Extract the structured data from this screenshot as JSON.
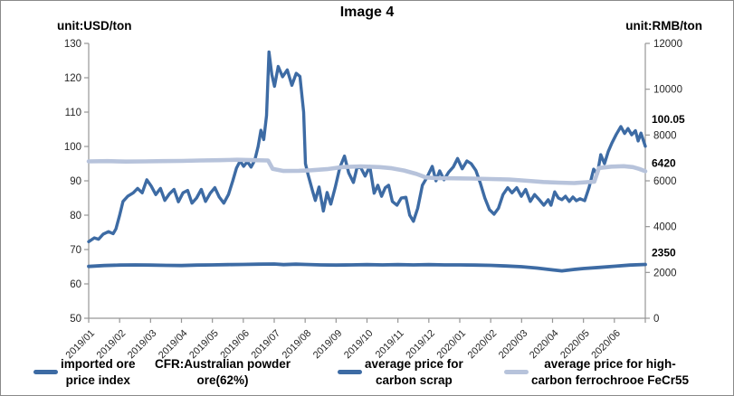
{
  "window": {
    "title": "Image 4"
  },
  "axis_units": {
    "left": "unit:USD/ton",
    "right": "unit:RMB/ton"
  },
  "colors": {
    "dark_blue": "#3d6ba4",
    "light_blue": "#b7c3db",
    "axis_gray": "#969696",
    "tick_text": "#262626",
    "label_black": "#000000"
  },
  "legend": {
    "items": [
      {
        "swatch": "dark",
        "line1": "imported ore",
        "line2": "price index"
      },
      {
        "swatch": "none",
        "line1": "CFR:Australian powder",
        "line2": "ore(62%)"
      },
      {
        "swatch": "dark",
        "line1": "average price for",
        "line2": "carbon scrap"
      },
      {
        "swatch": "light",
        "line1": "average price for high-",
        "line2": "carbon ferrochrooe FeCr55"
      }
    ]
  },
  "chart_data": {
    "type": "line",
    "title": "Image 4",
    "x": {
      "categories": [
        "2019/01",
        "2019/02",
        "2019/03",
        "2019/04",
        "2019/05",
        "2019/06",
        "2019/07",
        "2019/08",
        "2019/09",
        "2019/10",
        "2019/11",
        "2019/12",
        "2020/01",
        "2020/02",
        "2020/03",
        "2020/04",
        "2020/05",
        "2020/06"
      ]
    },
    "y_left": {
      "unit": "unit:USD/ton",
      "min": 50,
      "max": 130,
      "ticks": [
        50,
        60,
        70,
        80,
        90,
        100,
        110,
        120,
        130
      ]
    },
    "y_right": {
      "unit": "unit:RMB/ton",
      "min": 0,
      "max": 12000,
      "ticks": [
        0,
        2000,
        4000,
        6000,
        8000,
        10000,
        12000
      ]
    },
    "grid": false,
    "legend_position": "bottom",
    "series": [
      {
        "name": "imported ore price index CFR:Australian powder ore(62%)",
        "axis": "left",
        "color": "#3d6ba4",
        "stroke_width": 3.4,
        "end_label": "100.05",
        "end_label_dy": -26,
        "points": [
          [
            0,
            72.3
          ],
          [
            0.18,
            73.4
          ],
          [
            0.32,
            73.0
          ],
          [
            0.47,
            74.5
          ],
          [
            0.64,
            75.2
          ],
          [
            0.79,
            74.6
          ],
          [
            0.88,
            76.0
          ],
          [
            1.0,
            80.0
          ],
          [
            1.11,
            84.0
          ],
          [
            1.26,
            85.5
          ],
          [
            1.44,
            86.5
          ],
          [
            1.58,
            87.8
          ],
          [
            1.73,
            86.5
          ],
          [
            1.88,
            90.3
          ],
          [
            2.02,
            88.5
          ],
          [
            2.17,
            86.0
          ],
          [
            2.32,
            87.8
          ],
          [
            2.46,
            84.3
          ],
          [
            2.61,
            86.2
          ],
          [
            2.76,
            87.5
          ],
          [
            2.9,
            83.9
          ],
          [
            3.05,
            86.5
          ],
          [
            3.2,
            87.2
          ],
          [
            3.34,
            83.5
          ],
          [
            3.49,
            85.0
          ],
          [
            3.64,
            87.5
          ],
          [
            3.78,
            84.0
          ],
          [
            3.93,
            86.4
          ],
          [
            4.08,
            88.0
          ],
          [
            4.22,
            85.3
          ],
          [
            4.37,
            83.5
          ],
          [
            4.52,
            86.0
          ],
          [
            4.66,
            90.0
          ],
          [
            4.78,
            93.7
          ],
          [
            4.9,
            95.8
          ],
          [
            5.01,
            94.2
          ],
          [
            5.13,
            95.6
          ],
          [
            5.25,
            94.0
          ],
          [
            5.37,
            96.0
          ],
          [
            5.48,
            100.0
          ],
          [
            5.57,
            104.7
          ],
          [
            5.66,
            102.0
          ],
          [
            5.75,
            109.0
          ],
          [
            5.83,
            127.5
          ],
          [
            5.92,
            121.0
          ],
          [
            6.01,
            117.5
          ],
          [
            6.13,
            123.3
          ],
          [
            6.27,
            120.3
          ],
          [
            6.42,
            122.3
          ],
          [
            6.57,
            117.8
          ],
          [
            6.71,
            121.3
          ],
          [
            6.83,
            120.4
          ],
          [
            6.95,
            110.0
          ],
          [
            7.01,
            95.0
          ],
          [
            7.09,
            92.0
          ],
          [
            7.24,
            87.0
          ],
          [
            7.33,
            84.3
          ],
          [
            7.45,
            88.2
          ],
          [
            7.59,
            81.2
          ],
          [
            7.71,
            86.6
          ],
          [
            7.83,
            83.2
          ],
          [
            7.97,
            88.0
          ],
          [
            8.12,
            93.8
          ],
          [
            8.27,
            97.2
          ],
          [
            8.41,
            92.3
          ],
          [
            8.56,
            89.5
          ],
          [
            8.68,
            94.0
          ],
          [
            8.8,
            93.8
          ],
          [
            8.94,
            91.4
          ],
          [
            9.09,
            94.2
          ],
          [
            9.23,
            86.4
          ],
          [
            9.35,
            88.7
          ],
          [
            9.47,
            85.5
          ],
          [
            9.59,
            88.0
          ],
          [
            9.7,
            88.7
          ],
          [
            9.82,
            84.0
          ],
          [
            9.97,
            82.9
          ],
          [
            10.11,
            85.0
          ],
          [
            10.26,
            85.2
          ],
          [
            10.38,
            80.0
          ],
          [
            10.5,
            78.2
          ],
          [
            10.64,
            82.0
          ],
          [
            10.79,
            88.7
          ],
          [
            10.94,
            91.0
          ],
          [
            11.11,
            94.2
          ],
          [
            11.23,
            90.0
          ],
          [
            11.35,
            92.9
          ],
          [
            11.49,
            90.3
          ],
          [
            11.64,
            92.5
          ],
          [
            11.79,
            94.0
          ],
          [
            11.93,
            96.5
          ],
          [
            12.08,
            93.5
          ],
          [
            12.23,
            95.8
          ],
          [
            12.37,
            95.0
          ],
          [
            12.52,
            93.0
          ],
          [
            12.66,
            89.5
          ],
          [
            12.81,
            85.0
          ],
          [
            12.96,
            81.6
          ],
          [
            13.11,
            80.3
          ],
          [
            13.25,
            82.0
          ],
          [
            13.4,
            86.0
          ],
          [
            13.55,
            88.0
          ],
          [
            13.69,
            86.5
          ],
          [
            13.84,
            88.0
          ],
          [
            13.99,
            85.5
          ],
          [
            14.13,
            87.5
          ],
          [
            14.28,
            84.0
          ],
          [
            14.42,
            86.0
          ],
          [
            14.57,
            84.5
          ],
          [
            14.72,
            82.9
          ],
          [
            14.86,
            84.5
          ],
          [
            14.95,
            82.9
          ],
          [
            15.07,
            86.8
          ],
          [
            15.19,
            85.0
          ],
          [
            15.3,
            84.5
          ],
          [
            15.42,
            85.5
          ],
          [
            15.54,
            84.0
          ],
          [
            15.66,
            85.3
          ],
          [
            15.77,
            84.2
          ],
          [
            15.89,
            84.8
          ],
          [
            16.04,
            84.2
          ],
          [
            16.18,
            88.0
          ],
          [
            16.33,
            93.4
          ],
          [
            16.45,
            92.0
          ],
          [
            16.56,
            97.6
          ],
          [
            16.68,
            95.0
          ],
          [
            16.8,
            98.5
          ],
          [
            16.92,
            101.0
          ],
          [
            17.06,
            103.5
          ],
          [
            17.21,
            105.8
          ],
          [
            17.33,
            103.8
          ],
          [
            17.44,
            105.2
          ],
          [
            17.56,
            103.4
          ],
          [
            17.68,
            104.6
          ],
          [
            17.77,
            101.6
          ],
          [
            17.86,
            103.9
          ],
          [
            18,
            100.05
          ]
        ]
      },
      {
        "name": "average price for carbon scrap",
        "axis": "right",
        "color": "#3d6ba4",
        "stroke_width": 3.8,
        "end_label": "2350",
        "end_label_dy": -9,
        "points": [
          [
            0,
            2260
          ],
          [
            0.5,
            2300
          ],
          [
            1,
            2320
          ],
          [
            1.5,
            2330
          ],
          [
            2,
            2320
          ],
          [
            2.5,
            2310
          ],
          [
            3,
            2300
          ],
          [
            3.5,
            2320
          ],
          [
            4,
            2330
          ],
          [
            4.5,
            2340
          ],
          [
            5,
            2350
          ],
          [
            5.5,
            2360
          ],
          [
            6,
            2370
          ],
          [
            6.3,
            2340
          ],
          [
            6.7,
            2360
          ],
          [
            7,
            2350
          ],
          [
            7.5,
            2330
          ],
          [
            8,
            2320
          ],
          [
            8.5,
            2330
          ],
          [
            9,
            2340
          ],
          [
            9.5,
            2330
          ],
          [
            10,
            2340
          ],
          [
            10.5,
            2330
          ],
          [
            11,
            2340
          ],
          [
            11.5,
            2330
          ],
          [
            12,
            2330
          ],
          [
            12.5,
            2320
          ],
          [
            13,
            2310
          ],
          [
            13.5,
            2280
          ],
          [
            14,
            2250
          ],
          [
            14.5,
            2190
          ],
          [
            15,
            2110
          ],
          [
            15.3,
            2070
          ],
          [
            15.7,
            2130
          ],
          [
            16,
            2170
          ],
          [
            16.5,
            2220
          ],
          [
            17,
            2270
          ],
          [
            17.5,
            2320
          ],
          [
            18,
            2350
          ]
        ]
      },
      {
        "name": "average price for high-carbon ferrochrooe FeCr55",
        "axis": "right",
        "color": "#b7c3db",
        "stroke_width": 4.6,
        "end_label": "6420",
        "end_label_dy": -5,
        "points": [
          [
            0,
            6850
          ],
          [
            0.6,
            6860
          ],
          [
            1.2,
            6840
          ],
          [
            1.8,
            6850
          ],
          [
            2.4,
            6860
          ],
          [
            3,
            6870
          ],
          [
            3.6,
            6890
          ],
          [
            4.2,
            6900
          ],
          [
            4.8,
            6920
          ],
          [
            5.4,
            6900
          ],
          [
            5.8,
            6890
          ],
          [
            5.95,
            6520
          ],
          [
            6.3,
            6430
          ],
          [
            6.8,
            6440
          ],
          [
            7.2,
            6460
          ],
          [
            7.7,
            6510
          ],
          [
            8.2,
            6600
          ],
          [
            8.8,
            6630
          ],
          [
            9.4,
            6600
          ],
          [
            9.8,
            6550
          ],
          [
            10.2,
            6450
          ],
          [
            10.6,
            6300
          ],
          [
            10.9,
            6150
          ],
          [
            11.2,
            6120
          ],
          [
            11.8,
            6110
          ],
          [
            12.4,
            6100
          ],
          [
            13.0,
            6080
          ],
          [
            13.6,
            6060
          ],
          [
            14.2,
            6000
          ],
          [
            14.7,
            5950
          ],
          [
            15.2,
            5920
          ],
          [
            15.7,
            5900
          ],
          [
            16.1,
            5940
          ],
          [
            16.35,
            5960
          ],
          [
            16.5,
            6560
          ],
          [
            16.9,
            6620
          ],
          [
            17.3,
            6640
          ],
          [
            17.6,
            6600
          ],
          [
            17.8,
            6520
          ],
          [
            18,
            6420
          ]
        ]
      }
    ]
  }
}
